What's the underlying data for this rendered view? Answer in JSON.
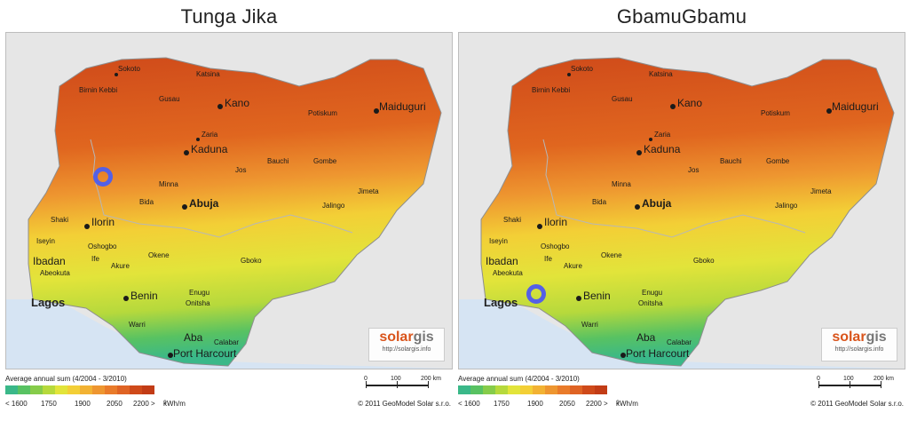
{
  "panels": [
    {
      "title": "Tunga Jika",
      "marker": {
        "color": "#5460e6"
      }
    },
    {
      "title": "GbamuGbamu",
      "marker": {
        "color": "#5460e6"
      }
    }
  ],
  "cities": {
    "sokoto": "Sokoto",
    "katsina": "Katsina",
    "birnin_kebbi": "Birnin Kebbi",
    "gusau": "Gusau",
    "kano": "Kano",
    "potiskum": "Potiskum",
    "maiduguri": "Maiduguri",
    "zaria": "Zaria",
    "kaduna": "Kaduna",
    "bauchi": "Bauchi",
    "gombe": "Gombe",
    "jos": "Jos",
    "jimeta": "Jimeta",
    "minna": "Minna",
    "bida": "Bida",
    "abuja": "Abuja",
    "jalingo": "Jalingo",
    "shaki": "Shaki",
    "ilorin": "Ilorin",
    "iseyin": "Iseyin",
    "oshogbo": "Oshogbo",
    "ife": "Ife",
    "ibadan": "Ibadan",
    "akure": "Akure",
    "okene": "Okene",
    "gboko": "Gboko",
    "abeokuta": "Abeokuta",
    "benin": "Benin",
    "enugu": "Enugu",
    "onitsha": "Onitsha",
    "lagos": "Lagos",
    "warri": "Warri",
    "aba": "Aba",
    "calabar": "Calabar",
    "port_harcourt": "Port Harcourt"
  },
  "brand": {
    "name_main": "solar",
    "name_accent": "gis",
    "url": "http://solargis.info"
  },
  "legend": {
    "title": "Average annual sum (4/2004 - 3/2010)",
    "colors": [
      "#3ab889",
      "#58c262",
      "#86cc4a",
      "#b6d93c",
      "#e2e43a",
      "#f3cf36",
      "#f2b233",
      "#ee9630",
      "#e97b2a",
      "#df6324",
      "#cf4a1a",
      "#c23c16"
    ],
    "labels": [
      "< 1600",
      "1750",
      "1900",
      "2050",
      "2200 >"
    ],
    "unit_prefix": "kWh/m",
    "unit_sup": "2"
  },
  "scale": {
    "labels": [
      "0",
      "100",
      "200 km"
    ]
  },
  "copyright": "© 2011 GeoModel Solar s.r.o."
}
